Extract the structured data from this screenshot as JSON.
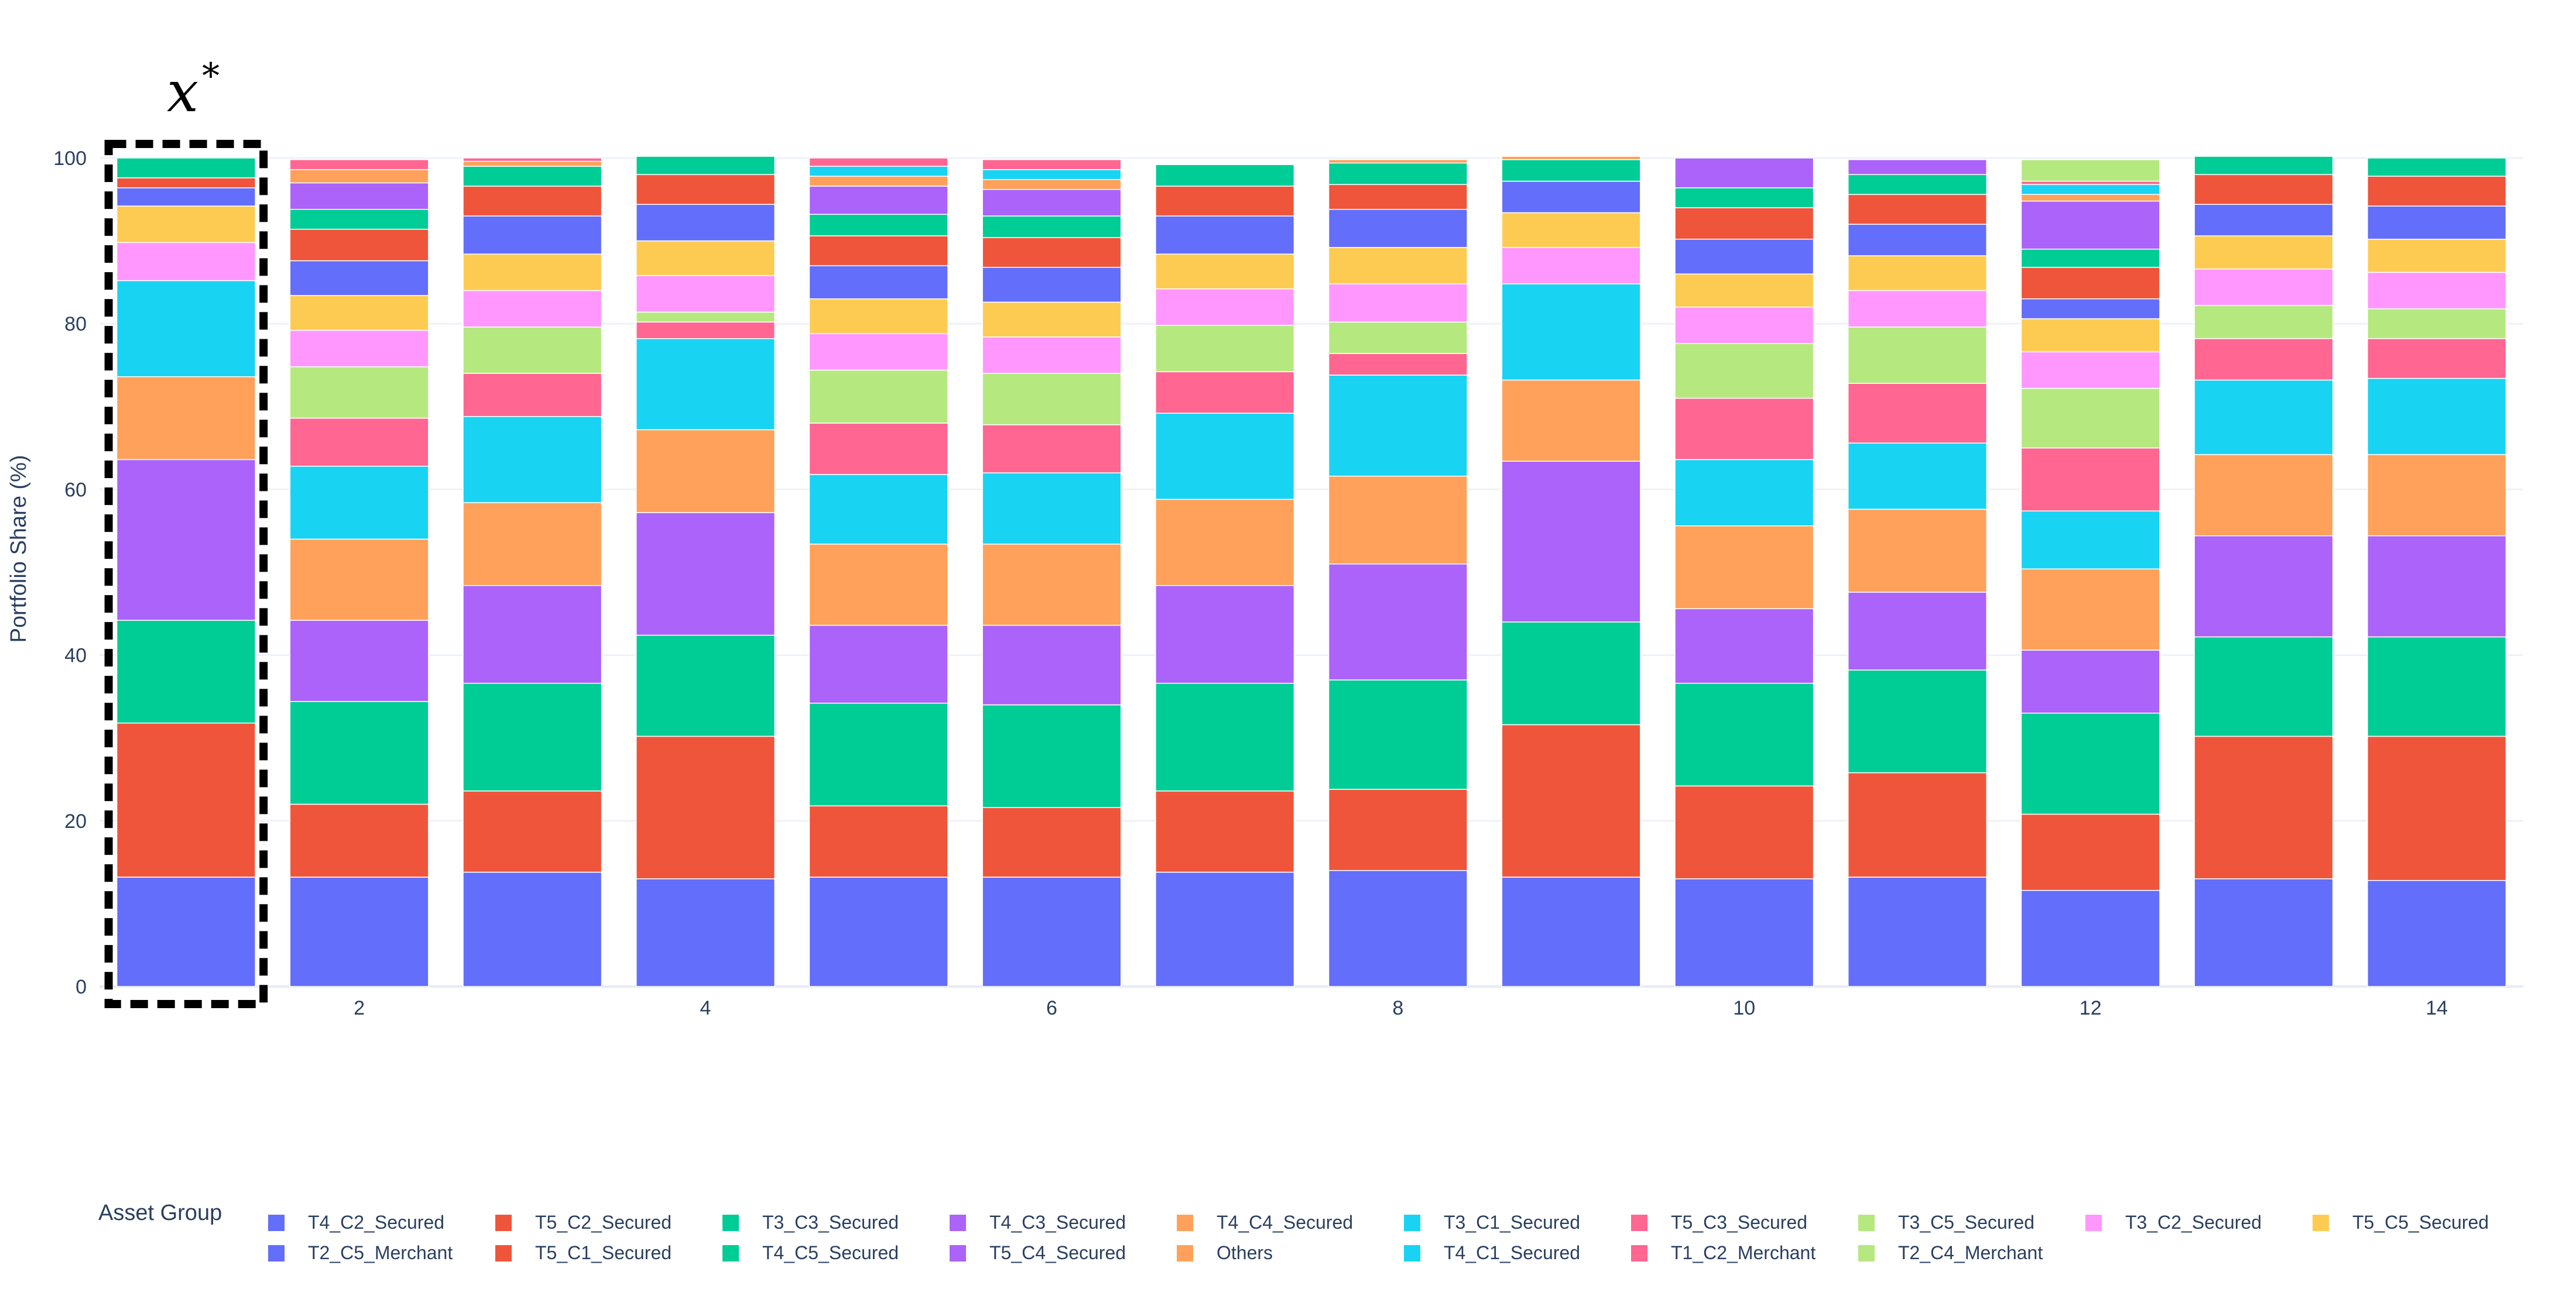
{
  "annotation": {
    "symbol": "x",
    "superscript": "*"
  },
  "chart_data": {
    "type": "stacked-bar",
    "title": "",
    "xlabel": "",
    "ylabel": "Portfolio Share (%)",
    "ylim": [
      0,
      100
    ],
    "yticks": [
      0,
      20,
      40,
      60,
      80,
      100
    ],
    "xticks": [
      2,
      4,
      6,
      8,
      10,
      12,
      14
    ],
    "categories": [
      1,
      2,
      3,
      4,
      5,
      6,
      7,
      8,
      9,
      10,
      11,
      12,
      13,
      14
    ],
    "highlighted_category": 1,
    "legend_title": "Asset Group",
    "legend_position": "bottom",
    "series": [
      {
        "name": "T4_C2_Secured",
        "color": "#636efa",
        "values": [
          13.2,
          13.2,
          13.8,
          13.0,
          13.2,
          13.2,
          13.8,
          14.0,
          13.2,
          13.0,
          13.2,
          11.6,
          13.0,
          12.8
        ]
      },
      {
        "name": "T5_C2_Secured",
        "color": "#ef553b",
        "values": [
          18.6,
          8.8,
          9.8,
          17.2,
          8.6,
          8.4,
          9.8,
          9.8,
          18.4,
          11.2,
          12.6,
          9.2,
          17.2,
          17.4
        ]
      },
      {
        "name": "T3_C3_Secured",
        "color": "#00cc96",
        "values": [
          12.4,
          12.4,
          13.0,
          12.2,
          12.4,
          12.4,
          13.0,
          13.2,
          12.4,
          12.4,
          12.4,
          12.2,
          12.0,
          12.0
        ]
      },
      {
        "name": "T4_C3_Secured",
        "color": "#ab63fa",
        "values": [
          19.4,
          9.8,
          11.8,
          14.8,
          9.4,
          9.6,
          11.8,
          14.0,
          19.4,
          9.0,
          9.4,
          7.6,
          12.2,
          12.2
        ]
      },
      {
        "name": "T4_C4_Secured",
        "color": "#ffa15a",
        "values": [
          10.0,
          9.8,
          10.0,
          10.0,
          9.8,
          9.8,
          10.4,
          10.6,
          9.8,
          10.0,
          10.0,
          9.8,
          9.8,
          9.8
        ]
      },
      {
        "name": "T3_C1_Secured",
        "color": "#19d3f3",
        "values": [
          11.6,
          8.8,
          10.4,
          11.0,
          8.4,
          8.6,
          10.4,
          12.2,
          11.6,
          8.0,
          8.0,
          7.0,
          9.0,
          9.2
        ]
      },
      {
        "name": "T5_C3_Secured",
        "color": "#ff6692",
        "values": [
          0,
          5.8,
          5.2,
          2.0,
          6.2,
          5.8,
          5.0,
          2.6,
          0,
          7.4,
          7.2,
          7.6,
          5.0,
          4.8
        ]
      },
      {
        "name": "T3_C5_Secured",
        "color": "#b6e880",
        "values": [
          0,
          6.2,
          5.6,
          1.2,
          6.4,
          6.2,
          5.6,
          3.8,
          0,
          6.6,
          6.8,
          7.2,
          4.0,
          3.6
        ]
      },
      {
        "name": "T3_C2_Secured",
        "color": "#ff97ff",
        "values": [
          4.6,
          4.4,
          4.4,
          4.4,
          4.4,
          4.4,
          4.4,
          4.6,
          4.4,
          4.4,
          4.4,
          4.4,
          4.4,
          4.4
        ]
      },
      {
        "name": "T5_C5_Secured",
        "color": "#fecb52",
        "values": [
          4.4,
          4.2,
          4.4,
          4.2,
          4.2,
          4.2,
          4.2,
          4.4,
          4.2,
          4.0,
          4.2,
          4.0,
          4.0,
          4.0
        ]
      },
      {
        "name": "T2_C5_Merchant",
        "color": "#636efa",
        "values": [
          2.2,
          4.2,
          4.6,
          4.4,
          4.0,
          4.2,
          4.6,
          4.6,
          3.8,
          4.2,
          3.8,
          2.4,
          3.8,
          4.0
        ]
      },
      {
        "name": "T5_C1_Secured",
        "color": "#ef553b",
        "values": [
          1.2,
          3.8,
          3.6,
          3.6,
          3.6,
          3.6,
          3.6,
          3.0,
          0,
          3.8,
          3.6,
          3.8,
          3.6,
          3.6
        ]
      },
      {
        "name": "T4_C5_Secured",
        "color": "#00cc96",
        "values": [
          2.4,
          2.4,
          2.4,
          2.2,
          2.6,
          2.6,
          2.6,
          2.6,
          2.6,
          2.4,
          2.4,
          2.2,
          2.2,
          2.2
        ]
      },
      {
        "name": "T5_C4_Secured",
        "color": "#ab63fa",
        "values": [
          0,
          3.2,
          0,
          0,
          3.4,
          3.2,
          0,
          0,
          0,
          3.6,
          1.8,
          5.8,
          0,
          0
        ]
      },
      {
        "name": "Others",
        "color": "#ffa15a",
        "values": [
          0,
          1.6,
          0.6,
          0,
          1.2,
          1.2,
          0,
          0.4,
          0.4,
          0,
          0,
          0.8,
          0,
          0
        ]
      },
      {
        "name": "T4_C1_Secured",
        "color": "#19d3f3",
        "values": [
          0,
          0,
          0,
          0,
          1.2,
          1.2,
          0,
          0,
          0,
          0,
          0,
          1.2,
          0,
          0
        ]
      },
      {
        "name": "T1_C2_Merchant",
        "color": "#ff6692",
        "values": [
          0,
          1.2,
          0.4,
          0,
          1.0,
          1.2,
          0,
          0,
          0,
          0,
          0,
          0.4,
          0,
          0
        ]
      },
      {
        "name": "T2_C4_Merchant",
        "color": "#b6e880",
        "values": [
          0,
          0,
          0,
          0,
          0,
          0,
          0,
          0,
          0,
          0,
          0,
          2.6,
          0,
          0
        ]
      }
    ]
  }
}
